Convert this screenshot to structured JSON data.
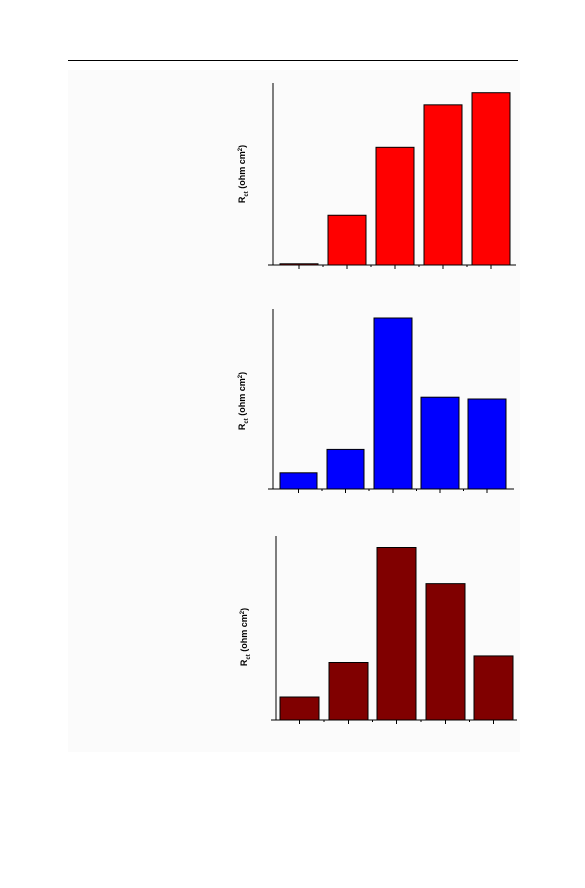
{
  "chart_data": [
    {
      "type": "bar",
      "ylabel_main": "R",
      "ylabel_sub": "ct",
      "ylabel_unit": " (ohm cm",
      "ylabel_sup": "2",
      "ylabel_close": ")",
      "values": [
        1,
        41,
        97,
        132,
        142
      ],
      "ylim": [
        0,
        150
      ],
      "color": "#ff0000"
    },
    {
      "type": "bar",
      "ylabel_main": "R",
      "ylabel_sub": "ct",
      "ylabel_unit": " (ohm cm",
      "ylabel_sup": "2",
      "ylabel_close": ")",
      "values": [
        9,
        22,
        95,
        51,
        50
      ],
      "ylim": [
        0,
        100
      ],
      "color": "#0000ff"
    },
    {
      "type": "bar",
      "ylabel_main": "R",
      "ylabel_sub": "ct",
      "ylabel_unit": " (ohm cm",
      "ylabel_sup": "2",
      "ylabel_close": ")",
      "values": [
        7,
        17.5,
        52.5,
        41.5,
        19.5
      ],
      "ylim": [
        0,
        56
      ],
      "color": "#800000"
    }
  ]
}
